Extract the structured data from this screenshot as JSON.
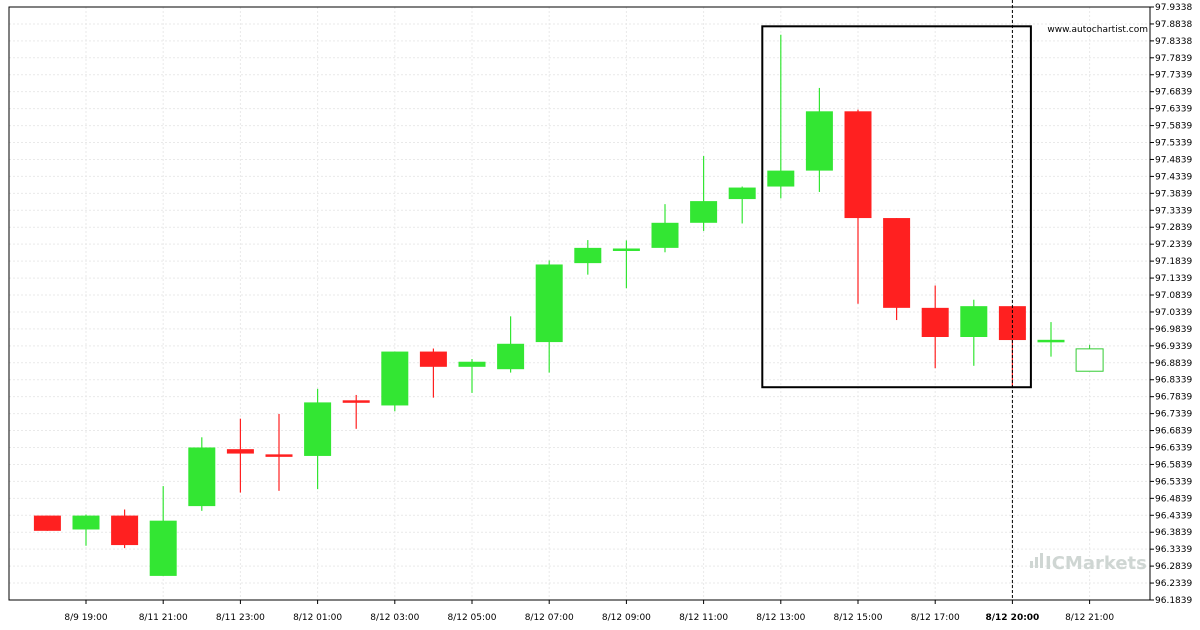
{
  "source_text": "www.autochartist.com",
  "brand_text": "ICMarkets",
  "colors": {
    "bull": "#33e633",
    "bear": "#ff2020",
    "grid": "#e9e9e9",
    "frame": "#000000",
    "pattern_box": "#000000",
    "forecast_outline": "#33cc33"
  },
  "chart_data": {
    "type": "candlestick",
    "title": "",
    "xlabel": "",
    "ylabel": "",
    "ylim": [
      96.1839,
      97.9338
    ],
    "grid": true,
    "y_ticks": [
      "97.9338",
      "97.8838",
      "97.8338",
      "97.7839",
      "97.7339",
      "97.6839",
      "97.6339",
      "97.5839",
      "97.5339",
      "97.4839",
      "97.4339",
      "97.3839",
      "97.3339",
      "97.2839",
      "97.2339",
      "97.1839",
      "97.1339",
      "97.0839",
      "97.0339",
      "96.9839",
      "96.9339",
      "96.8839",
      "96.8339",
      "96.7839",
      "96.7339",
      "96.6839",
      "96.6339",
      "96.5839",
      "96.5339",
      "96.4839",
      "96.4339",
      "96.3839",
      "96.3339",
      "96.2839",
      "96.2339",
      "96.1839"
    ],
    "x_labels": [
      {
        "index": 1,
        "label": "8/9 19:00"
      },
      {
        "index": 3,
        "label": "8/11 21:00"
      },
      {
        "index": 5,
        "label": "8/11 23:00"
      },
      {
        "index": 7,
        "label": "8/12 01:00"
      },
      {
        "index": 9,
        "label": "8/12 03:00"
      },
      {
        "index": 11,
        "label": "8/12 05:00"
      },
      {
        "index": 13,
        "label": "8/12 07:00"
      },
      {
        "index": 15,
        "label": "8/12 09:00"
      },
      {
        "index": 17,
        "label": "8/12 11:00"
      },
      {
        "index": 19,
        "label": "8/12 13:00"
      },
      {
        "index": 21,
        "label": "8/12 15:00"
      },
      {
        "index": 23,
        "label": "8/12 17:00"
      },
      {
        "index": 25,
        "label": "8/12 20:00",
        "bold": true
      },
      {
        "index": 27,
        "label": "8/12 21:00"
      }
    ],
    "candles": [
      {
        "o": 96.433,
        "h": 96.433,
        "l": 96.388,
        "c": 96.388
      },
      {
        "o": 96.392,
        "h": 96.436,
        "l": 96.344,
        "c": 96.433
      },
      {
        "o": 96.433,
        "h": 96.451,
        "l": 96.337,
        "c": 96.346
      },
      {
        "o": 96.255,
        "h": 96.52,
        "l": 96.255,
        "c": 96.418
      },
      {
        "o": 96.461,
        "h": 96.664,
        "l": 96.447,
        "c": 96.634
      },
      {
        "o": 96.629,
        "h": 96.719,
        "l": 96.501,
        "c": 96.616
      },
      {
        "o": 96.611,
        "h": 96.733,
        "l": 96.506,
        "c": 96.609
      },
      {
        "o": 96.609,
        "h": 96.807,
        "l": 96.511,
        "c": 96.767
      },
      {
        "o": 96.772,
        "h": 96.789,
        "l": 96.689,
        "c": 96.767
      },
      {
        "o": 96.758,
        "h": 96.917,
        "l": 96.741,
        "c": 96.917
      },
      {
        "o": 96.917,
        "h": 96.926,
        "l": 96.781,
        "c": 96.872
      },
      {
        "o": 96.872,
        "h": 96.895,
        "l": 96.795,
        "c": 96.887
      },
      {
        "o": 96.865,
        "h": 97.021,
        "l": 96.855,
        "c": 96.94
      },
      {
        "o": 96.945,
        "h": 97.186,
        "l": 96.855,
        "c": 97.174
      },
      {
        "o": 97.178,
        "h": 97.246,
        "l": 97.144,
        "c": 97.223
      },
      {
        "o": 97.215,
        "h": 97.245,
        "l": 97.104,
        "c": 97.22
      },
      {
        "o": 97.223,
        "h": 97.352,
        "l": 97.21,
        "c": 97.297
      },
      {
        "o": 97.297,
        "h": 97.494,
        "l": 97.273,
        "c": 97.361
      },
      {
        "o": 97.367,
        "h": 97.404,
        "l": 97.295,
        "c": 97.401
      },
      {
        "o": 97.404,
        "h": 97.852,
        "l": 97.369,
        "c": 97.451
      },
      {
        "o": 97.451,
        "h": 97.695,
        "l": 97.388,
        "c": 97.626
      },
      {
        "o": 97.626,
        "h": 97.631,
        "l": 97.058,
        "c": 97.311
      },
      {
        "o": 97.311,
        "h": 97.311,
        "l": 97.01,
        "c": 97.046
      },
      {
        "o": 97.046,
        "h": 97.112,
        "l": 96.868,
        "c": 96.96
      },
      {
        "o": 96.96,
        "h": 97.07,
        "l": 96.875,
        "c": 97.051
      },
      {
        "o": 97.051,
        "h": 97.051,
        "l": 96.813,
        "c": 96.951
      },
      {
        "o": 96.948,
        "h": 97.004,
        "l": 96.902,
        "c": 96.948
      }
    ],
    "forecast_candle": {
      "index": 27,
      "o": 96.925,
      "h": 96.937,
      "l": 96.859,
      "c": 96.859
    },
    "pattern_box": {
      "start_index": 19,
      "end_index": 25,
      "high": 97.8768,
      "low": 96.8118
    },
    "current_time_index": 25
  }
}
